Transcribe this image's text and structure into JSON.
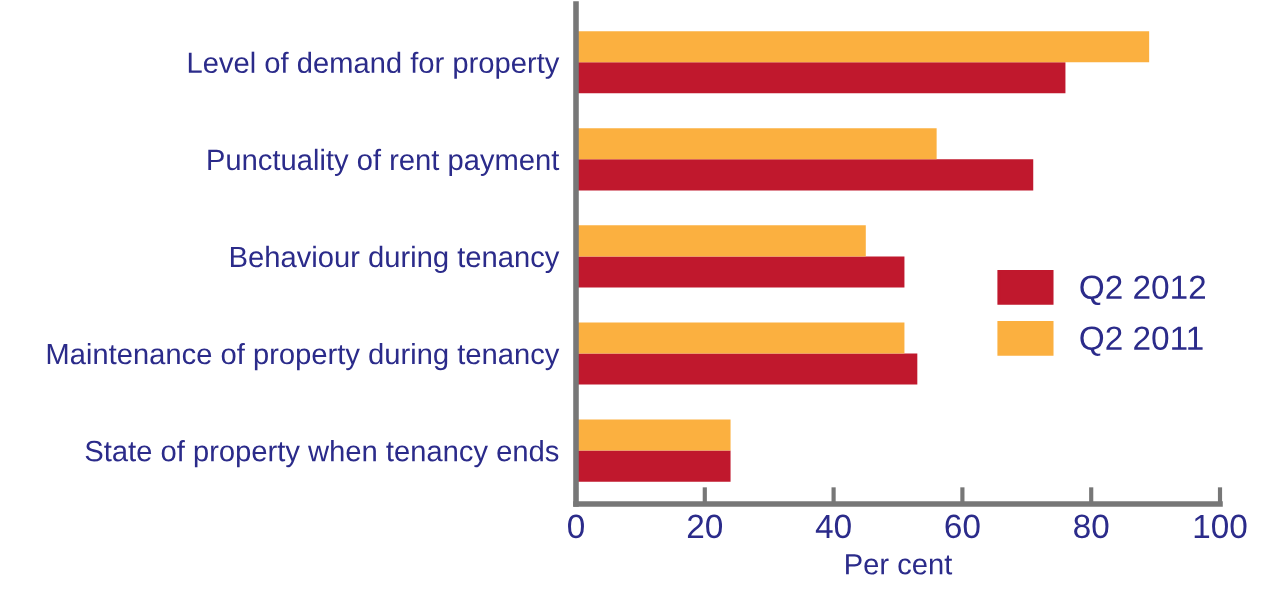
{
  "chart_data": {
    "type": "bar",
    "orientation": "horizontal",
    "xlabel": "Per cent",
    "categories": [
      "Level of demand for property",
      "Punctuality of rent payment",
      "Behaviour during tenancy",
      "Maintenance of property during tenancy",
      "State of property when tenancy ends"
    ],
    "series": [
      {
        "name": "Q2 2012",
        "color": "#c0182d",
        "values": [
          76,
          71,
          51,
          53,
          24
        ]
      },
      {
        "name": "Q2 2011",
        "color": "#fbb040",
        "values": [
          89,
          56,
          45,
          51,
          24
        ]
      }
    ],
    "xlim": [
      0,
      100
    ],
    "xticks": [
      0,
      20,
      40,
      60,
      80,
      100
    ],
    "grid": false,
    "legend": "right"
  }
}
